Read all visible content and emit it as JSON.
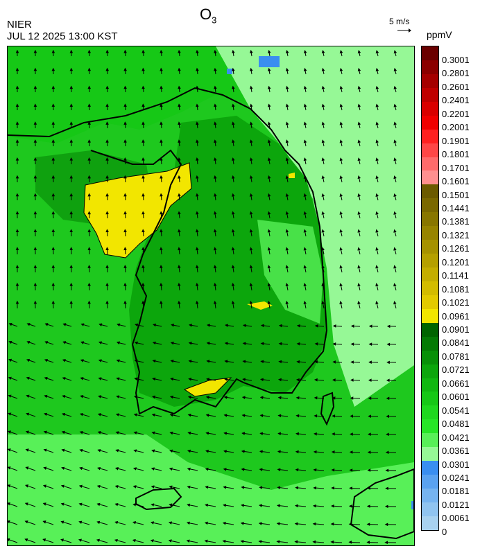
{
  "header": {
    "agency": "NIER",
    "datetime": "JUL 12 2025 13:00 KST",
    "title_main": "O",
    "title_sub": "3",
    "vector_scale": "5 m/s",
    "unit": "ppmV"
  },
  "colorbar": {
    "labels": [
      "0.3001",
      "0.2801",
      "0.2601",
      "0.2401",
      "0.2201",
      "0.2001",
      "0.1901",
      "0.1801",
      "0.1701",
      "0.1601",
      "0.1501",
      "0.1441",
      "0.1381",
      "0.1321",
      "0.1261",
      "0.1201",
      "0.1141",
      "0.1081",
      "0.1021",
      "0.0961",
      "0.0901",
      "0.0841",
      "0.0781",
      "0.0721",
      "0.0661",
      "0.0601",
      "0.0541",
      "0.0481",
      "0.0421",
      "0.0361",
      "0.0301",
      "0.0241",
      "0.0181",
      "0.0121",
      "0.0061",
      "0"
    ],
    "colors": [
      "#6a0000",
      "#8b0000",
      "#a50000",
      "#bf0000",
      "#d90000",
      "#f00000",
      "#ff2020",
      "#ff4646",
      "#ff6a6a",
      "#ff9090",
      "#6b5a00",
      "#7a6800",
      "#887600",
      "#978400",
      "#a69200",
      "#b5a000",
      "#c4ae00",
      "#d3bc00",
      "#e2ca00",
      "#f2e600",
      "#006400",
      "#047a04",
      "#089008",
      "#0ca60c",
      "#10b810",
      "#16c816",
      "#1ed81e",
      "#26e626",
      "#58f058",
      "#96f896",
      "#3a8ef0",
      "#5aa2f0",
      "#76b4f0",
      "#90c4f0",
      "#a8d2f0"
    ]
  },
  "map": {
    "colors": {
      "background": "#1ec81e",
      "land_dark": "#0ca60c",
      "land_mid": "#16c816",
      "east_light": "#96f896",
      "sea_light": "#58f058",
      "high_yellow": "#f2e600",
      "low_blue": "#3a8ef0",
      "coast": "#000000"
    }
  }
}
